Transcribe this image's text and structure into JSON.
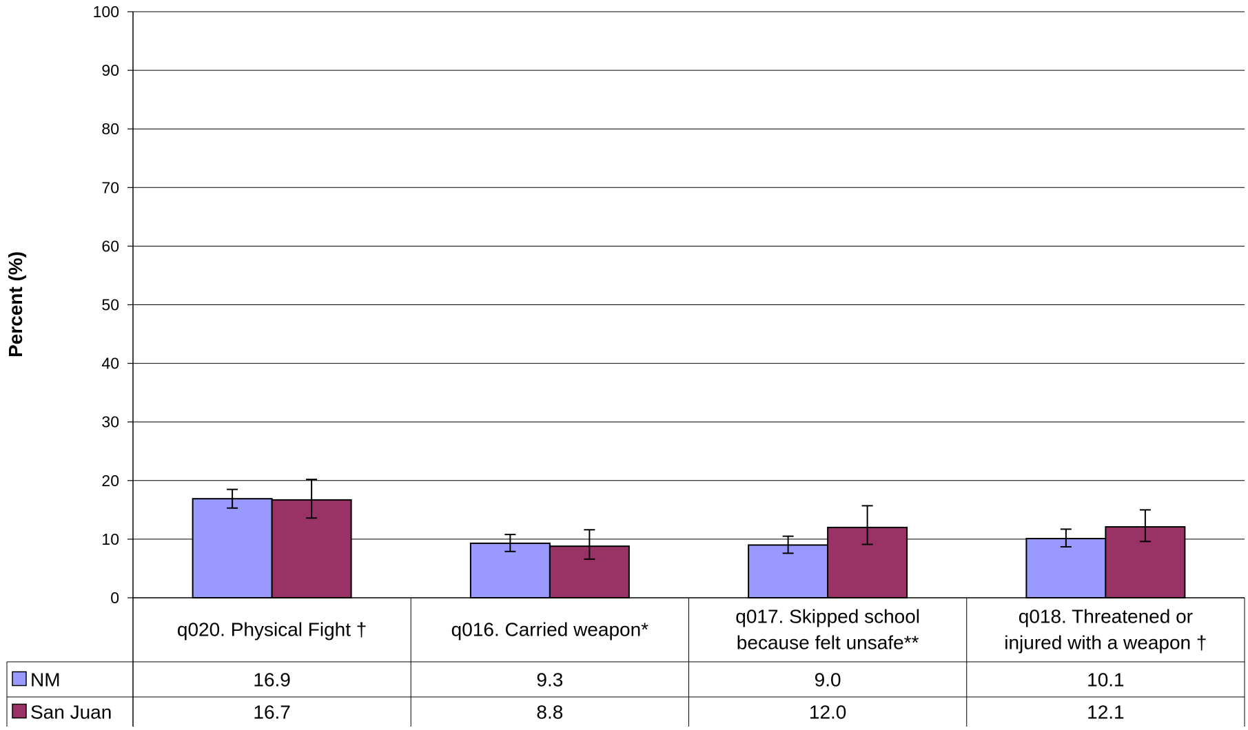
{
  "chart_data": {
    "type": "bar",
    "title": "",
    "xlabel": "",
    "ylabel": "Percent (%)",
    "ylim": [
      0,
      100
    ],
    "yticks": [
      0,
      10,
      20,
      30,
      40,
      50,
      60,
      70,
      80,
      90,
      100
    ],
    "grid": true,
    "legend": "data-table-left",
    "categories": [
      "q020. Physical Fight †",
      "q016. Carried weapon*",
      "q017. Skipped school because felt unsafe**",
      "q018. Threatened or injured with a weapon †"
    ],
    "category_lines": [
      [
        "q020. Physical Fight †"
      ],
      [
        "q016. Carried weapon*"
      ],
      [
        "q017. Skipped school",
        "because felt unsafe**"
      ],
      [
        "q018. Threatened or",
        "injured with a weapon †"
      ]
    ],
    "series": [
      {
        "name": "NM",
        "color": "#9999ff",
        "values": [
          16.9,
          9.3,
          9.0,
          10.1
        ],
        "labels": [
          "16.9",
          "9.3",
          "9.0",
          "10.1"
        ],
        "error_low": [
          15.3,
          7.9,
          7.6,
          8.7
        ],
        "error_high": [
          18.5,
          10.8,
          10.5,
          11.7
        ]
      },
      {
        "name": "San Juan",
        "color": "#993366",
        "values": [
          16.7,
          8.8,
          12.0,
          12.1
        ],
        "labels": [
          "16.7",
          "8.8",
          "12.0",
          "12.1"
        ],
        "error_low": [
          13.6,
          6.6,
          9.1,
          9.6
        ],
        "error_high": [
          20.2,
          11.6,
          15.7,
          15.0
        ]
      }
    ]
  }
}
